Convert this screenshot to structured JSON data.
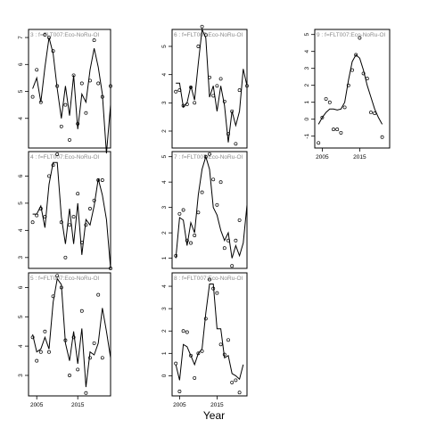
{
  "chart_data": {
    "type": "line",
    "xlabel": "Year",
    "panels": [
      {
        "id": "3",
        "title": "3 : f=FLT007:Eco-NoRu-Ol",
        "xlim": [
          2003,
          2023
        ],
        "ylim": [
          2.9,
          7.3
        ],
        "yticks": [
          4,
          5,
          6,
          7
        ],
        "xticks": [],
        "xtick_labels": [],
        "points": [
          [
            2004,
            4.8
          ],
          [
            2005,
            5.8
          ],
          [
            2006,
            4.6
          ],
          [
            2007,
            7.1
          ],
          [
            2008,
            7.0
          ],
          [
            2009,
            6.5
          ],
          [
            2010,
            5.2
          ],
          [
            2011,
            3.7
          ],
          [
            2012,
            4.5
          ],
          [
            2013,
            3.2
          ],
          [
            2014,
            5.6
          ],
          [
            2015,
            3.8
          ],
          [
            2016,
            5.3
          ],
          [
            2017,
            4.2
          ],
          [
            2018,
            5.4
          ],
          [
            2019,
            6.9
          ],
          [
            2020,
            5.3
          ],
          [
            2021,
            4.8
          ],
          [
            2023,
            5.2
          ]
        ],
        "line": [
          [
            2004,
            5.1
          ],
          [
            2005,
            5.5
          ],
          [
            2006,
            4.6
          ],
          [
            2007,
            5.9
          ],
          [
            2008,
            7.0
          ],
          [
            2009,
            6.4
          ],
          [
            2010,
            5.1
          ],
          [
            2011,
            4.0
          ],
          [
            2012,
            5.2
          ],
          [
            2013,
            4.1
          ],
          [
            2014,
            5.6
          ],
          [
            2015,
            3.6
          ],
          [
            2016,
            4.9
          ],
          [
            2017,
            4.6
          ],
          [
            2018,
            5.8
          ],
          [
            2019,
            6.6
          ],
          [
            2020,
            5.9
          ],
          [
            2021,
            4.9
          ],
          [
            2022,
            2.7
          ],
          [
            2023,
            4.5
          ]
        ]
      },
      {
        "id": "6",
        "title": "6 : f=FLT007:Eco-NoRu-Ol",
        "xlim": [
          2003,
          2023
        ],
        "ylim": [
          1.4,
          5.6
        ],
        "yticks": [
          2,
          3,
          4,
          5
        ],
        "xticks": [],
        "xtick_labels": [],
        "points": [
          [
            2004,
            3.4
          ],
          [
            2005,
            3.45
          ],
          [
            2006,
            2.9
          ],
          [
            2007,
            2.95
          ],
          [
            2008,
            3.55
          ],
          [
            2009,
            3.0
          ],
          [
            2010,
            5.0
          ],
          [
            2011,
            5.7
          ],
          [
            2012,
            5.4
          ],
          [
            2013,
            3.9
          ],
          [
            2014,
            3.25
          ],
          [
            2015,
            3.6
          ],
          [
            2016,
            3.85
          ],
          [
            2017,
            3.05
          ],
          [
            2018,
            1.9
          ],
          [
            2019,
            2.7
          ],
          [
            2020,
            1.55
          ],
          [
            2021,
            3.45
          ],
          [
            2023,
            3.6
          ]
        ],
        "line": [
          [
            2004,
            3.7
          ],
          [
            2005,
            3.7
          ],
          [
            2006,
            2.85
          ],
          [
            2007,
            3.0
          ],
          [
            2008,
            3.6
          ],
          [
            2009,
            3.1
          ],
          [
            2010,
            4.4
          ],
          [
            2011,
            5.6
          ],
          [
            2012,
            5.3
          ],
          [
            2013,
            3.2
          ],
          [
            2014,
            3.6
          ],
          [
            2015,
            2.7
          ],
          [
            2016,
            3.6
          ],
          [
            2017,
            2.9
          ],
          [
            2018,
            1.6
          ],
          [
            2019,
            2.7
          ],
          [
            2020,
            2.2
          ],
          [
            2021,
            2.7
          ],
          [
            2022,
            4.2
          ],
          [
            2023,
            3.6
          ]
        ]
      },
      {
        "id": "9",
        "title": "9 : f=FLT007:Eco-NoRu-Ol",
        "xlim": [
          2003,
          2023
        ],
        "ylim": [
          -1.7,
          5.3
        ],
        "yticks": [
          -1,
          0,
          1,
          2,
          3,
          4,
          5
        ],
        "xticks": [
          2005,
          2015
        ],
        "xtick_labels": [
          "2005",
          "2015"
        ],
        "points": [
          [
            2004,
            -1.4
          ],
          [
            2005,
            0.1
          ],
          [
            2006,
            1.2
          ],
          [
            2007,
            1.0
          ],
          [
            2008,
            -0.6
          ],
          [
            2009,
            -0.6
          ],
          [
            2010,
            -0.8
          ],
          [
            2011,
            0.7
          ],
          [
            2012,
            2.0
          ],
          [
            2013,
            2.9
          ],
          [
            2014,
            3.8
          ],
          [
            2015,
            4.8
          ],
          [
            2016,
            2.7
          ],
          [
            2017,
            2.4
          ],
          [
            2018,
            0.4
          ],
          [
            2019,
            0.35
          ],
          [
            2021,
            -1.05
          ]
        ],
        "line": [
          [
            2004,
            -0.3
          ],
          [
            2005,
            0.1
          ],
          [
            2006,
            0.4
          ],
          [
            2007,
            0.6
          ],
          [
            2008,
            0.6
          ],
          [
            2009,
            0.55
          ],
          [
            2010,
            0.6
          ],
          [
            2011,
            1.0
          ],
          [
            2012,
            2.3
          ],
          [
            2013,
            3.4
          ],
          [
            2014,
            3.8
          ],
          [
            2015,
            3.6
          ],
          [
            2016,
            2.9
          ],
          [
            2017,
            2.0
          ],
          [
            2018,
            1.3
          ],
          [
            2019,
            0.6
          ],
          [
            2020,
            0.1
          ],
          [
            2021,
            -0.3
          ]
        ]
      },
      {
        "id": "4",
        "title": "4 : f=FLT007:Eco-NoRu-Ol",
        "xlim": [
          2003,
          2023
        ],
        "ylim": [
          2.6,
          6.9
        ],
        "yticks": [
          3,
          4,
          5,
          6
        ],
        "xticks": [],
        "xtick_labels": [],
        "points": [
          [
            2004,
            4.3
          ],
          [
            2005,
            4.55
          ],
          [
            2006,
            4.8
          ],
          [
            2007,
            4.5
          ],
          [
            2008,
            6.0
          ],
          [
            2009,
            6.4
          ],
          [
            2010,
            6.8
          ],
          [
            2011,
            4.3
          ],
          [
            2012,
            3.0
          ],
          [
            2013,
            4.2
          ],
          [
            2014,
            4.5
          ],
          [
            2015,
            5.35
          ],
          [
            2016,
            3.55
          ],
          [
            2017,
            4.2
          ],
          [
            2018,
            4.8
          ],
          [
            2019,
            5.1
          ],
          [
            2020,
            5.85
          ],
          [
            2021,
            5.85
          ],
          [
            2023,
            2.6
          ]
        ],
        "line": [
          [
            2004,
            4.6
          ],
          [
            2005,
            4.6
          ],
          [
            2006,
            4.9
          ],
          [
            2007,
            4.1
          ],
          [
            2008,
            5.7
          ],
          [
            2009,
            6.5
          ],
          [
            2010,
            6.5
          ],
          [
            2011,
            4.5
          ],
          [
            2012,
            3.5
          ],
          [
            2013,
            4.8
          ],
          [
            2014,
            3.5
          ],
          [
            2015,
            5.0
          ],
          [
            2016,
            3.1
          ],
          [
            2017,
            4.4
          ],
          [
            2018,
            4.2
          ],
          [
            2019,
            4.9
          ],
          [
            2020,
            5.9
          ],
          [
            2021,
            5.3
          ],
          [
            2022,
            4.4
          ],
          [
            2023,
            2.6
          ]
        ]
      },
      {
        "id": "7",
        "title": "7 : f=FLT007:Eco-NoRu-Ol",
        "xlim": [
          2003,
          2023
        ],
        "ylim": [
          0.6,
          5.2
        ],
        "yticks": [
          1,
          2,
          3,
          4,
          5
        ],
        "xticks": [],
        "xtick_labels": [],
        "points": [
          [
            2004,
            1.1
          ],
          [
            2005,
            2.75
          ],
          [
            2006,
            2.9
          ],
          [
            2007,
            1.7
          ],
          [
            2008,
            1.6
          ],
          [
            2009,
            1.9
          ],
          [
            2010,
            2.8
          ],
          [
            2011,
            3.6
          ],
          [
            2012,
            5.0
          ],
          [
            2013,
            5.1
          ],
          [
            2014,
            4.1
          ],
          [
            2015,
            3.1
          ],
          [
            2016,
            4.0
          ],
          [
            2017,
            1.4
          ],
          [
            2018,
            1.7
          ],
          [
            2019,
            0.7
          ],
          [
            2020,
            1.7
          ],
          [
            2021,
            2.5
          ]
        ],
        "line": [
          [
            2004,
            1.0
          ],
          [
            2005,
            2.6
          ],
          [
            2006,
            2.5
          ],
          [
            2007,
            1.5
          ],
          [
            2008,
            2.4
          ],
          [
            2009,
            2.0
          ],
          [
            2010,
            3.5
          ],
          [
            2011,
            4.5
          ],
          [
            2012,
            5.0
          ],
          [
            2013,
            4.5
          ],
          [
            2014,
            3.0
          ],
          [
            2015,
            2.7
          ],
          [
            2016,
            2.1
          ],
          [
            2017,
            1.7
          ],
          [
            2018,
            2.0
          ],
          [
            2019,
            1.0
          ],
          [
            2020,
            1.5
          ],
          [
            2021,
            1.1
          ],
          [
            2022,
            1.6
          ],
          [
            2023,
            3.1
          ]
        ]
      },
      {
        "id": "5",
        "title": "5 : f=FLT007:Eco-NoRu-Ol",
        "xlim": [
          2003,
          2023
        ],
        "ylim": [
          2.3,
          6.5
        ],
        "yticks": [
          3,
          4,
          5,
          6
        ],
        "xticks": [
          2005,
          2015
        ],
        "xtick_labels": [
          "2005",
          "2015"
        ],
        "points": [
          [
            2004,
            4.3
          ],
          [
            2005,
            3.5
          ],
          [
            2006,
            3.8
          ],
          [
            2007,
            4.5
          ],
          [
            2008,
            3.8
          ],
          [
            2009,
            5.7
          ],
          [
            2010,
            6.4
          ],
          [
            2011,
            6.0
          ],
          [
            2012,
            4.2
          ],
          [
            2013,
            3.0
          ],
          [
            2014,
            4.3
          ],
          [
            2015,
            3.2
          ],
          [
            2016,
            5.2
          ],
          [
            2017,
            2.4
          ],
          [
            2018,
            3.6
          ],
          [
            2019,
            4.1
          ],
          [
            2020,
            5.75
          ],
          [
            2021,
            3.6
          ]
        ],
        "line": [
          [
            2004,
            4.4
          ],
          [
            2005,
            3.8
          ],
          [
            2006,
            3.9
          ],
          [
            2007,
            4.3
          ],
          [
            2008,
            3.9
          ],
          [
            2009,
            5.5
          ],
          [
            2010,
            6.3
          ],
          [
            2011,
            6.1
          ],
          [
            2012,
            4.1
          ],
          [
            2013,
            3.5
          ],
          [
            2014,
            4.5
          ],
          [
            2015,
            3.4
          ],
          [
            2016,
            4.6
          ],
          [
            2017,
            2.6
          ],
          [
            2018,
            3.8
          ],
          [
            2019,
            3.7
          ],
          [
            2020,
            4.1
          ],
          [
            2021,
            5.3
          ],
          [
            2022,
            4.5
          ],
          [
            2023,
            3.6
          ]
        ]
      },
      {
        "id": "8",
        "title": "8 : f=FLT007:Eco-NoRu-Ol",
        "xlim": [
          2003,
          2023
        ],
        "ylim": [
          -0.9,
          4.6
        ],
        "yticks": [
          0,
          1,
          2,
          3,
          4
        ],
        "xticks": [
          2005,
          2015
        ],
        "xtick_labels": [
          "2005",
          "2015"
        ],
        "points": [
          [
            2004,
            0.55
          ],
          [
            2005,
            -0.7
          ],
          [
            2006,
            2.0
          ],
          [
            2007,
            1.95
          ],
          [
            2008,
            0.9
          ],
          [
            2009,
            -0.1
          ],
          [
            2010,
            1.0
          ],
          [
            2011,
            1.1
          ],
          [
            2012,
            2.55
          ],
          [
            2013,
            4.3
          ],
          [
            2014,
            3.9
          ],
          [
            2015,
            3.7
          ],
          [
            2016,
            1.4
          ],
          [
            2017,
            0.95
          ],
          [
            2018,
            1.6
          ],
          [
            2019,
            -0.3
          ],
          [
            2020,
            -0.2
          ],
          [
            2021,
            -0.75
          ]
        ],
        "line": [
          [
            2004,
            0.5
          ],
          [
            2005,
            -0.2
          ],
          [
            2006,
            1.4
          ],
          [
            2007,
            1.3
          ],
          [
            2008,
            0.9
          ],
          [
            2009,
            0.5
          ],
          [
            2010,
            1.0
          ],
          [
            2011,
            1.2
          ],
          [
            2012,
            2.8
          ],
          [
            2013,
            4.1
          ],
          [
            2014,
            4.1
          ],
          [
            2015,
            2.1
          ],
          [
            2016,
            2.1
          ],
          [
            2017,
            0.8
          ],
          [
            2018,
            0.9
          ],
          [
            2019,
            0.1
          ],
          [
            2020,
            0.0
          ],
          [
            2021,
            -0.15
          ],
          [
            2022,
            0.5
          ]
        ]
      }
    ]
  }
}
